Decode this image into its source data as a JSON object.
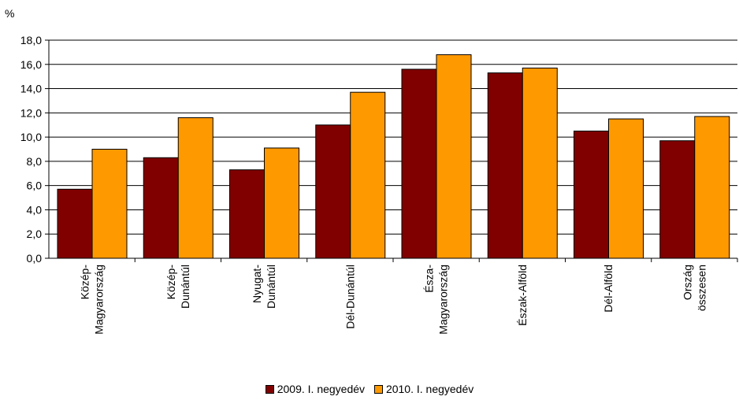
{
  "chart_data": {
    "type": "bar",
    "ylabel": "%",
    "ylim": [
      0,
      18
    ],
    "yticks": [
      "0,0",
      "2,0",
      "4,0",
      "6,0",
      "8,0",
      "10,0",
      "12,0",
      "14,0",
      "16,0",
      "18,0"
    ],
    "grid": true,
    "legend_position": "bottom",
    "categories": [
      [
        "Közép-",
        "Magyarország"
      ],
      [
        "Közép-",
        "Dunántúl"
      ],
      [
        "Nyugat-",
        "Dunántúl"
      ],
      [
        "Dél-Dunántúl"
      ],
      [
        "Észa-",
        "Magyarország"
      ],
      [
        "Észak-Alföld"
      ],
      [
        "Dél-Alföld"
      ],
      [
        "Ország",
        "összesen"
      ]
    ],
    "series": [
      {
        "name": "2009. I. negyedév",
        "color": "#800000",
        "values": [
          5.7,
          8.3,
          7.3,
          11.0,
          15.6,
          15.3,
          10.5,
          9.7
        ]
      },
      {
        "name": "2010. I. negyedév",
        "color": "#FF9900",
        "values": [
          9.0,
          11.6,
          9.1,
          13.7,
          16.8,
          15.7,
          11.5,
          11.7
        ]
      }
    ]
  }
}
